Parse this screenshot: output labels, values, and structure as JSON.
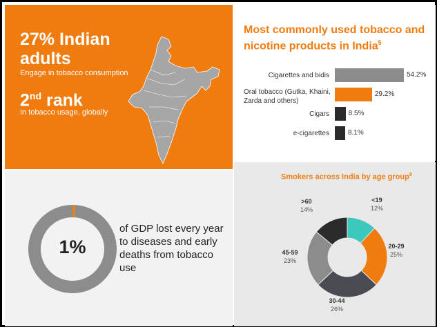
{
  "stats": {
    "adults_headline": "27% Indian adults",
    "adults_sub": "Engage in tobacco consumption",
    "rank_big": "2",
    "rank_suffix": "nd",
    "rank_word": " rank",
    "rank_sub": "In tobacco usage, globally"
  },
  "gdp": {
    "pct_text": "1%",
    "pct_value": 1,
    "text": "of GDP lost every year to diseases and early deaths from tobacco use",
    "colors": {
      "ring": "#8c8c8c",
      "accent": "#f07c10"
    }
  },
  "chart_data": [
    {
      "type": "bar",
      "orientation": "horizontal",
      "title": "Most commonly used tobacco and nicotine products in India",
      "title_sup": "5",
      "categories": [
        "Cigarettes and bidis",
        "Oral tobacco (Gutka, Khaini, Zarda and others)",
        "Cigars",
        "e-cigarettes"
      ],
      "values": [
        54.2,
        29.2,
        8.5,
        8.1
      ],
      "labels": [
        "54.2%",
        "29.2%",
        "8.5%",
        "8.1%"
      ],
      "colors": [
        "#8c8c8c",
        "#f07c10",
        "#2b2b2b",
        "#2b2b2b"
      ],
      "grid": false
    },
    {
      "type": "pie",
      "donut": true,
      "title": "Smokers across India by age group",
      "title_sup": "9",
      "categories": [
        "<19",
        "20-29",
        "30-44",
        "45-59",
        ">60"
      ],
      "values": [
        12,
        25,
        26,
        23,
        14
      ],
      "labels": [
        "12%",
        "25%",
        "26%",
        "23%",
        "14%"
      ],
      "colors": [
        "#3cc8bd",
        "#f07c10",
        "#4a4a52",
        "#8c8c8c",
        "#2b2b2b"
      ]
    }
  ],
  "colors": {
    "orange": "#f07c10",
    "map": "#a6a6a6"
  }
}
